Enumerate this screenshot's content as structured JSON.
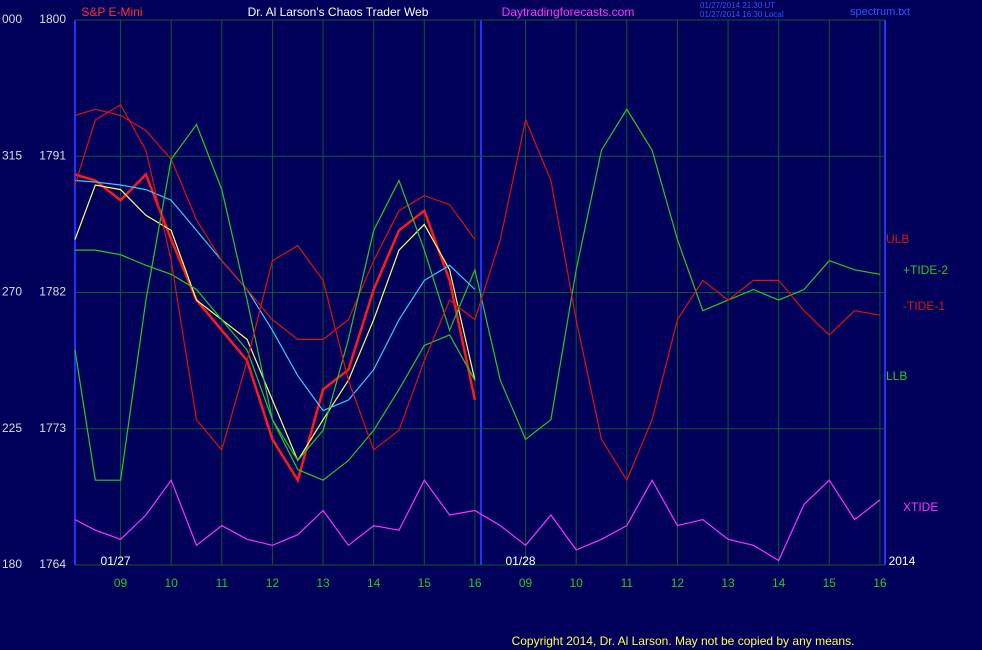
{
  "chart_data": {
    "type": "line",
    "title": "Dr. Al Larson's Chaos Trader Web",
    "site": "Daytradingforecasts.com",
    "timestamps": [
      "01/27/2014 21:30 UT",
      "01/27/2014 16:30 Local"
    ],
    "file": "spectrum.txt",
    "copyright": "Copyright 2014, Dr. Al Larson. May not be copied by any means.",
    "annotations": [
      {
        "text": "01/27",
        "x": 9
      },
      {
        "text": "01/28",
        "x": 17
      },
      {
        "text": "2014",
        "x": 24
      }
    ],
    "x": [
      8.1,
      8.5,
      9,
      9.5,
      10,
      10.5,
      11,
      11.5,
      12,
      12.5,
      13,
      13.5,
      14,
      14.5,
      15,
      15.5,
      16,
      16.5,
      17,
      17.5,
      18,
      18.5,
      19,
      19.5,
      20,
      20.5,
      21,
      21.5,
      22,
      22.5,
      23,
      23.5,
      24
    ],
    "xlim": [
      8.1,
      24.1
    ],
    "xticks": [
      {
        "value": 9,
        "label": "09"
      },
      10,
      11,
      12,
      13,
      14,
      15,
      16,
      {
        "value": 17,
        "label": "09"
      },
      {
        "value": 18,
        "label": "10"
      },
      {
        "value": 19,
        "label": "11"
      },
      {
        "value": 20,
        "label": "12"
      },
      {
        "value": 21,
        "label": "13"
      },
      {
        "value": 22,
        "label": "14"
      },
      {
        "value": 23,
        "label": "15"
      },
      {
        "value": 24,
        "label": "16"
      }
    ],
    "ylim": [
      1764,
      1800
    ],
    "yticks": [
      1764,
      1773,
      1782,
      1791,
      1800
    ],
    "y2lim": [
      180,
      360
    ],
    "y2ticks": [
      180,
      225,
      270,
      315,
      {
        "value": 360,
        "label": "000"
      }
    ],
    "grid": true,
    "series": [
      {
        "name": "S&P E-Mini",
        "color": "#ff1a1a",
        "values": [
          1789.8,
          1789.4,
          1788.1,
          1789.8,
          1785.5,
          1781.5,
          1779.5,
          1777.5,
          1772.3,
          1769.6,
          1775.6,
          1776.9,
          1782.2,
          1786.1,
          1787.4,
          1782.8,
          1774.9,
          null,
          null,
          null,
          null,
          null,
          null,
          null,
          null,
          null,
          null,
          null,
          null,
          null,
          null,
          null,
          null
        ]
      },
      {
        "color": "#ffff66",
        "values": [
          1785.5,
          1789.1,
          1788.8,
          1787.1,
          1786.1,
          1781.5,
          1780.2,
          1778.9,
          1774.9,
          1770.9,
          1773.6,
          1776.2,
          1780.2,
          1784.8,
          1786.5,
          1783.5,
          1776.2,
          null,
          null,
          null,
          null,
          null,
          null,
          null,
          null,
          null,
          null,
          null,
          null,
          null,
          null,
          null,
          null
        ]
      },
      {
        "color": "#33ccff",
        "values": [
          1789.4,
          1789.3,
          1789.1,
          1788.8,
          1788.1,
          1786.1,
          1784.1,
          1782.2,
          1779.5,
          1776.5,
          1774.2,
          1774.9,
          1776.9,
          1780.2,
          1782.8,
          1783.8,
          1782.2,
          null,
          null,
          null,
          null,
          null,
          null,
          null,
          null,
          null,
          null,
          null,
          null,
          null,
          null,
          null,
          null
        ]
      },
      {
        "name": "ULB",
        "color": "#dd1111",
        "values": [
          1793.7,
          1794.1,
          1793.7,
          1792.7,
          1790.8,
          1786.8,
          1784.1,
          1782.2,
          1780.2,
          1778.9,
          1778.9,
          1780.2,
          1784.1,
          1787.4,
          1788.4,
          1787.8,
          1785.5,
          null,
          null,
          null,
          null,
          null,
          null,
          null,
          null,
          null,
          null,
          null,
          null,
          null,
          null,
          null,
          null
        ]
      },
      {
        "name": "LLB",
        "color": "#22cc22",
        "values": [
          1784.8,
          1784.8,
          1784.5,
          1783.8,
          1783.2,
          1782.2,
          1780.2,
          1778.2,
          1773.6,
          1770.3,
          1769.6,
          1770.9,
          1772.9,
          1775.6,
          1778.5,
          1779.2,
          1776.2,
          null,
          null,
          null,
          null,
          null,
          null,
          null,
          null,
          null,
          null,
          null,
          null,
          null,
          null,
          null,
          null
        ]
      },
      {
        "name": "+TIDE-2",
        "color": "#22cc22",
        "values": [
          1778.2,
          1769.6,
          1769.6,
          1781.5,
          1790.8,
          1793.1,
          1788.8,
          1781.5,
          1773.6,
          1770.9,
          1772.9,
          1778.9,
          1786.1,
          1789.4,
          1784.8,
          1779.5,
          1783.5,
          1776.2,
          1772.3,
          1773.6,
          1783.5,
          1791.4,
          1794.1,
          1791.4,
          1785.5,
          1780.8,
          1781.5,
          1782.2,
          1781.5,
          1782.2,
          1784.1,
          1783.5,
          1783.2
        ]
      },
      {
        "name": "-TIDE-1",
        "color": "#dd1111",
        "values": [
          1789.1,
          1793.4,
          1794.4,
          1791.4,
          1784.1,
          1773.6,
          1771.6,
          1777.5,
          1784.1,
          1785.1,
          1782.8,
          1776.2,
          1771.6,
          1772.9,
          1777.5,
          1781.5,
          1780.2,
          1785.5,
          1793.4,
          1789.4,
          1780.2,
          1772.3,
          1769.6,
          1773.6,
          1780.2,
          1782.8,
          1781.5,
          1782.8,
          1782.8,
          1780.8,
          1779.2,
          1780.8,
          1780.5
        ]
      },
      {
        "name": "XTIDE",
        "color": "#ff33ff",
        "values": [
          1767.0,
          1766.3,
          1765.7,
          1767.3,
          1769.6,
          1765.3,
          1766.6,
          1765.7,
          1765.3,
          1766.0,
          1767.6,
          1765.3,
          1766.6,
          1766.3,
          1769.6,
          1767.3,
          1767.6,
          1766.6,
          1765.3,
          1767.3,
          1765.0,
          1765.7,
          1766.6,
          1769.6,
          1766.6,
          1767.0,
          1765.7,
          1765.3,
          1764.3,
          1768.0,
          1769.6,
          1767.0,
          1768.3
        ]
      }
    ]
  }
}
